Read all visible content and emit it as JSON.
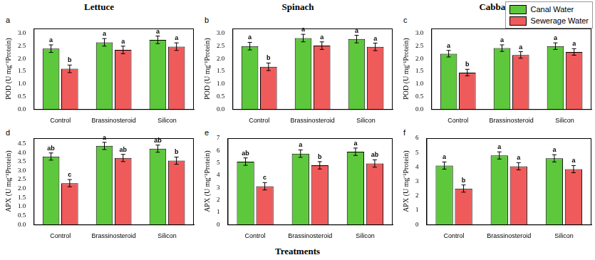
{
  "chart_data": [
    {
      "type": "bar",
      "panel": "a",
      "title": "Lettuce",
      "y_label": "POD (U mg⁻¹Protein)",
      "categories": [
        "Control",
        "Brassinosteroid",
        "Silicon"
      ],
      "series": [
        {
          "name": "Canal Water",
          "color": "#5ec83c",
          "values": [
            2.4,
            2.65,
            2.75
          ],
          "errors": [
            0.15,
            0.15,
            0.15
          ],
          "letters": [
            "a",
            "a",
            "a"
          ]
        },
        {
          "name": "Sewerage Water",
          "color": "#ef5b5b",
          "values": [
            1.6,
            2.35,
            2.48
          ],
          "errors": [
            0.15,
            0.15,
            0.15
          ],
          "letters": [
            "b",
            "a",
            "a"
          ]
        }
      ],
      "ylim": [
        0,
        3.2
      ],
      "yticks": [
        {
          "value": 0,
          "label": "0.0"
        },
        0.5,
        {
          "value": 1,
          "label": "1.0"
        },
        1.5,
        {
          "value": 2,
          "label": "2.0"
        },
        2.5,
        {
          "value": 3,
          "label": "3.0"
        }
      ],
      "grid": false
    },
    {
      "type": "bar",
      "panel": "b",
      "title": "Spinach",
      "y_label": "POD (U mg⁻¹Protein)",
      "categories": [
        "Control",
        "Brassinosteroid",
        "Silicon"
      ],
      "series": [
        {
          "name": "Canal Water",
          "color": "#5ec83c",
          "values": [
            2.5,
            2.82,
            2.78
          ],
          "errors": [
            0.15,
            0.15,
            0.15
          ],
          "letters": [
            "a",
            "a",
            "a"
          ]
        },
        {
          "name": "Sewerage Water",
          "color": "#ef5b5b",
          "values": [
            1.68,
            2.52,
            2.47
          ],
          "errors": [
            0.15,
            0.15,
            0.15
          ],
          "letters": [
            "b",
            "a",
            "a"
          ]
        }
      ],
      "ylim": [
        0,
        3.2
      ],
      "yticks": [
        {
          "value": 0,
          "label": "0.0"
        },
        0.5,
        {
          "value": 1,
          "label": "1.0"
        },
        1.5,
        {
          "value": 2,
          "label": "2.0"
        },
        2.5,
        {
          "value": 3,
          "label": "3.0"
        }
      ],
      "grid": false
    },
    {
      "type": "bar",
      "panel": "c",
      "title": "Cabbage",
      "y_label": "POD (U mg⁻¹Protein)",
      "categories": [
        "Control",
        "Brassinosteroid",
        "Silicon"
      ],
      "series": [
        {
          "name": "Canal Water",
          "color": "#5ec83c",
          "values": [
            2.2,
            2.42,
            2.5
          ],
          "errors": [
            0.13,
            0.13,
            0.13
          ],
          "letters": [
            "a",
            "a",
            "a"
          ]
        },
        {
          "name": "Sewerage Water",
          "color": "#ef5b5b",
          "values": [
            1.45,
            2.15,
            2.27
          ],
          "errors": [
            0.13,
            0.13,
            0.13
          ],
          "letters": [
            "b",
            "a",
            "a"
          ]
        }
      ],
      "ylim": [
        0,
        3.2
      ],
      "yticks": [
        {
          "value": 0,
          "label": "0.0"
        },
        0.5,
        {
          "value": 1,
          "label": "1.0"
        },
        1.5,
        {
          "value": 2,
          "label": "2.0"
        },
        2.5,
        {
          "value": 3,
          "label": "3.0"
        }
      ],
      "grid": false,
      "legend": "top right"
    },
    {
      "type": "bar",
      "panel": "d",
      "y_label": "APX (U mg⁻¹Protein)",
      "categories": [
        "Control",
        "Brassinosteroid",
        "Silicon"
      ],
      "series": [
        {
          "name": "Canal Water",
          "color": "#5ec83c",
          "values": [
            3.78,
            4.37,
            4.22
          ],
          "errors": [
            0.2,
            0.2,
            0.2
          ],
          "letters": [
            "ab",
            "a",
            "ab"
          ]
        },
        {
          "name": "Sewerage Water",
          "color": "#ef5b5b",
          "values": [
            2.3,
            3.7,
            3.55
          ],
          "errors": [
            0.2,
            0.2,
            0.2
          ],
          "letters": [
            "c",
            "ab",
            "b"
          ]
        }
      ],
      "ylim": [
        0,
        4.8
      ],
      "yticks": [
        {
          "value": 0,
          "label": "0.0"
        },
        0.5,
        {
          "value": 1,
          "label": "1.0"
        },
        1.5,
        {
          "value": 2,
          "label": "2.0"
        },
        2.5,
        {
          "value": 3,
          "label": "3.0"
        },
        3.5,
        {
          "value": 4,
          "label": "4.0"
        },
        4.5
      ],
      "grid": false
    },
    {
      "type": "bar",
      "panel": "e",
      "y_label": "APX (U mg⁻¹Protein)",
      "x_label": "Treatments",
      "categories": [
        "Control",
        "Brassinosteroid",
        "Silicon"
      ],
      "series": [
        {
          "name": "Canal Water",
          "color": "#5ec83c",
          "values": [
            5.1,
            5.75,
            5.9
          ],
          "errors": [
            0.3,
            0.3,
            0.3
          ],
          "letters": [
            "ab",
            "a",
            "a"
          ]
        },
        {
          "name": "Sewerage Water",
          "color": "#ef5b5b",
          "values": [
            3.1,
            4.8,
            4.95
          ],
          "errors": [
            0.3,
            0.3,
            0.3
          ],
          "letters": [
            "c",
            "b",
            "ab"
          ]
        }
      ],
      "ylim": [
        0,
        7
      ],
      "yticks": [
        0,
        1,
        2,
        3,
        4,
        5,
        6,
        7
      ],
      "grid": false
    },
    {
      "type": "bar",
      "panel": "f",
      "y_label": "APX (U mg⁻¹Protein)",
      "categories": [
        "Control",
        "Brassinosteroid",
        "Silicon"
      ],
      "series": [
        {
          "name": "Canal Water",
          "color": "#5ec83c",
          "values": [
            4.1,
            4.8,
            4.6
          ],
          "errors": [
            0.25,
            0.25,
            0.25
          ],
          "letters": [
            "a",
            "a",
            "a"
          ]
        },
        {
          "name": "Sewerage Water",
          "color": "#ef5b5b",
          "values": [
            2.5,
            4.05,
            3.85
          ],
          "errors": [
            0.25,
            0.25,
            0.25
          ],
          "letters": [
            "b",
            "a",
            "a"
          ]
        }
      ],
      "ylim": [
        0,
        6
      ],
      "yticks": [
        0,
        1,
        2,
        3,
        4,
        5,
        6
      ],
      "grid": false
    }
  ]
}
